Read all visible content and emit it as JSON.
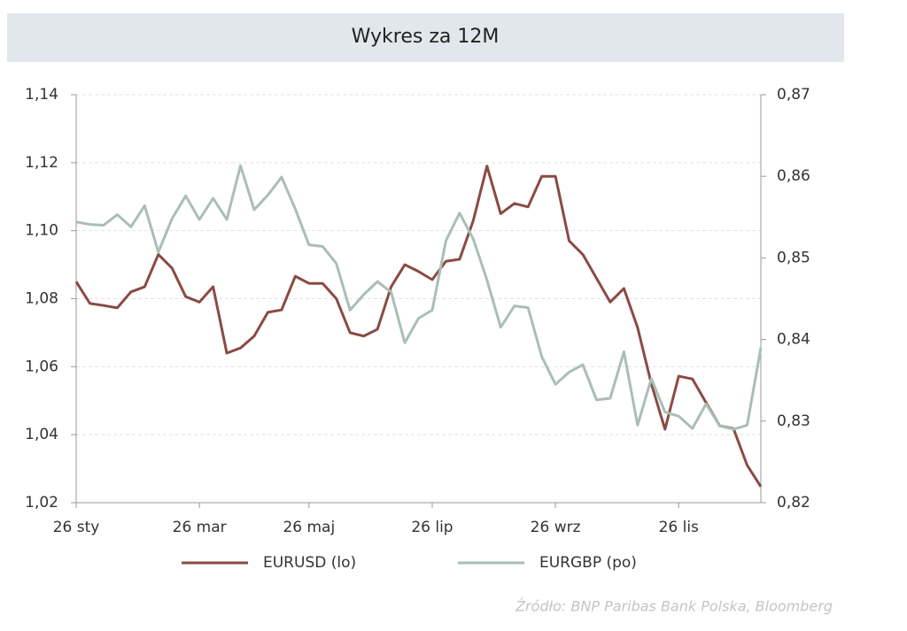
{
  "chart_data": {
    "type": "line",
    "title": "Wykres za 12M",
    "source": "Źródło:  BNP Paribas Bank Polska, Bloomberg",
    "categories": [
      "26 sty",
      null,
      null,
      null,
      null,
      null,
      null,
      null,
      null,
      "26 mar",
      null,
      null,
      null,
      null,
      null,
      null,
      null,
      "26 maj",
      null,
      null,
      null,
      null,
      null,
      null,
      null,
      null,
      "26 lip",
      null,
      null,
      null,
      null,
      null,
      null,
      null,
      null,
      "26 wrz",
      null,
      null,
      null,
      null,
      null,
      null,
      null,
      null,
      "26 lis",
      null,
      null,
      null,
      null,
      null,
      null
    ],
    "series": [
      {
        "name": "EURUSD (lo)",
        "color": "#8b4a44",
        "axis": "y",
        "values": [
          1.085,
          1.0786,
          1.078,
          1.0773,
          1.082,
          1.0835,
          1.093,
          1.089,
          1.0806,
          1.079,
          1.0835,
          1.064,
          1.0655,
          1.069,
          1.076,
          1.0767,
          1.0866,
          1.0845,
          1.0845,
          1.08,
          1.07,
          1.069,
          1.071,
          1.0835,
          1.09,
          1.088,
          1.0856,
          1.091,
          1.0916,
          1.103,
          1.119,
          1.105,
          1.108,
          1.107,
          1.116,
          1.116,
          1.097,
          1.093,
          1.086,
          1.079,
          1.083,
          1.0715,
          1.055,
          1.0416,
          1.0572,
          1.0564,
          1.0494,
          1.0426,
          1.0418,
          1.031,
          1.0247
        ]
      },
      {
        "name": "EURGBP (po)",
        "color": "#a9bfb5",
        "axis": "y2",
        "values": [
          0.8544,
          0.8541,
          0.854,
          0.8553,
          0.8538,
          0.8564,
          0.8507,
          0.8548,
          0.8576,
          0.8547,
          0.8573,
          0.8547,
          0.8613,
          0.8559,
          0.8577,
          0.8599,
          0.856,
          0.8516,
          0.8514,
          0.8493,
          0.8436,
          0.8455,
          0.8471,
          0.8458,
          0.8396,
          0.8426,
          0.8436,
          0.8521,
          0.8555,
          0.8523,
          0.8473,
          0.8415,
          0.8441,
          0.8439,
          0.8379,
          0.8345,
          0.836,
          0.8369,
          0.8326,
          0.8328,
          0.8385,
          0.8295,
          0.8352,
          0.8311,
          0.8306,
          0.8291,
          0.8321,
          0.8294,
          0.829,
          0.8295,
          0.839
        ]
      }
    ],
    "ylim": [
      1.02,
      1.14
    ],
    "yticks": [
      {
        "value": 1.02,
        "label": "1,02"
      },
      {
        "value": 1.04,
        "label": "1,04"
      },
      {
        "value": 1.06,
        "label": "1,06"
      },
      {
        "value": 1.08,
        "label": "1,08"
      },
      {
        "value": 1.1,
        "label": "1,10"
      },
      {
        "value": 1.12,
        "label": "1,12"
      },
      {
        "value": 1.14,
        "label": "1,14"
      }
    ],
    "y2lim": [
      0.82,
      0.87
    ],
    "y2ticks": [
      {
        "value": 0.82,
        "label": "0,82"
      },
      {
        "value": 0.83,
        "label": "0,83"
      },
      {
        "value": 0.84,
        "label": "0,84"
      },
      {
        "value": 0.85,
        "label": "0,85"
      },
      {
        "value": 0.86,
        "label": "0,86"
      },
      {
        "value": 0.87,
        "label": "0,87"
      }
    ],
    "grid": true,
    "legend": "bottom"
  }
}
